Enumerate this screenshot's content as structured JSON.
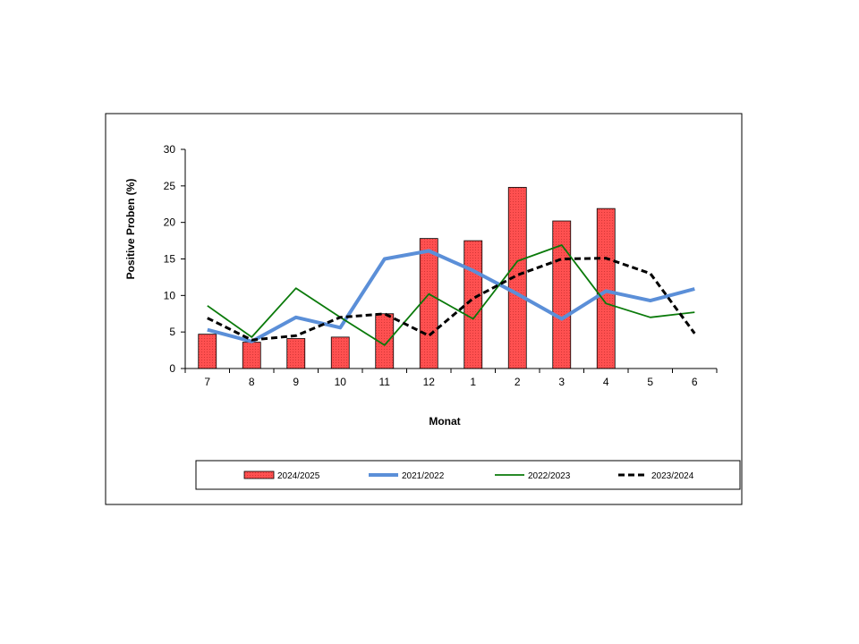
{
  "chart_data": {
    "type": "bar",
    "categories": [
      "7",
      "8",
      "9",
      "10",
      "11",
      "12",
      "1",
      "2",
      "3",
      "4",
      "5",
      "6"
    ],
    "xlabel": "Monat",
    "ylabel": "Positive Proben (%)",
    "ylim": [
      0,
      30
    ],
    "yticks": [
      0,
      5,
      10,
      15,
      20,
      25,
      30
    ],
    "grid": false,
    "legend_position": "bottom",
    "series": [
      {
        "name": "2024/2025",
        "type": "bar",
        "color": "#ff5050",
        "values": [
          4.7,
          3.6,
          4.1,
          4.3,
          7.5,
          17.8,
          17.5,
          24.8,
          20.2,
          21.9,
          null,
          null
        ]
      },
      {
        "name": "2021/2022",
        "type": "line",
        "color": "#5b8fd8",
        "style": "solid-thick",
        "values": [
          5.3,
          3.7,
          7.0,
          5.6,
          15.0,
          16.1,
          13.4,
          10.2,
          6.8,
          10.6,
          9.3,
          10.9
        ]
      },
      {
        "name": "2022/2023",
        "type": "line",
        "color": "#0a7a0a",
        "style": "solid-thin",
        "values": [
          8.6,
          4.3,
          11.0,
          7.0,
          3.2,
          10.2,
          6.8,
          14.7,
          16.9,
          8.9,
          7.0,
          7.7
        ]
      },
      {
        "name": "2023/2024",
        "type": "line",
        "color": "#000000",
        "style": "dashed",
        "values": [
          6.9,
          3.9,
          4.5,
          7.0,
          7.5,
          4.5,
          9.6,
          12.8,
          15.0,
          15.1,
          13.0,
          4.8
        ]
      }
    ]
  }
}
